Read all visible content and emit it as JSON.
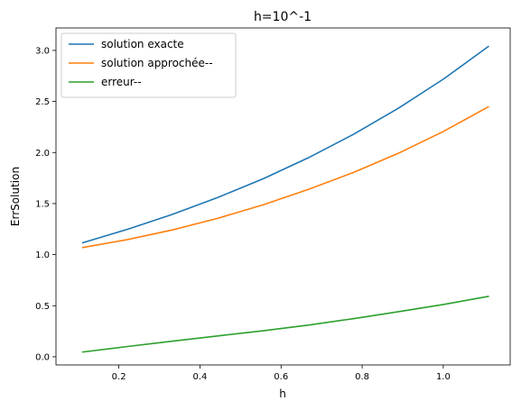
{
  "chart_data": {
    "type": "line",
    "title": "h=10^-1",
    "xlabel": "h",
    "ylabel": "ErrSolution",
    "xlim": [
      0.045,
      1.165
    ],
    "ylim": [
      -0.08,
      3.22
    ],
    "xticks": [
      0.2,
      0.4,
      0.6,
      0.8,
      1.0
    ],
    "xtick_labels": [
      "0.2",
      "0.4",
      "0.6",
      "0.8",
      "1.0"
    ],
    "yticks": [
      0.0,
      0.5,
      1.0,
      1.5,
      2.0,
      2.5,
      3.0
    ],
    "ytick_labels": [
      "0.0",
      "0.5",
      "1.0",
      "1.5",
      "2.0",
      "2.5",
      "3.0"
    ],
    "grid": false,
    "legend_position": "upper-left",
    "x": [
      0.111,
      0.222,
      0.333,
      0.444,
      0.556,
      0.667,
      0.778,
      0.889,
      1.0,
      1.111
    ],
    "series": [
      {
        "name": "solution exacte",
        "color": "#1f77b4",
        "values": [
          1.117,
          1.249,
          1.396,
          1.56,
          1.743,
          1.948,
          2.177,
          2.433,
          2.718,
          3.038
        ]
      },
      {
        "name": "solution approchée--",
        "color": "#ff7f0e",
        "values": [
          1.07,
          1.148,
          1.243,
          1.356,
          1.488,
          1.638,
          1.804,
          1.992,
          2.206,
          2.447
        ]
      },
      {
        "name": "erreur--",
        "color": "#2ca02c",
        "values": [
          0.047,
          0.101,
          0.153,
          0.204,
          0.255,
          0.31,
          0.373,
          0.441,
          0.512,
          0.591
        ]
      }
    ]
  }
}
